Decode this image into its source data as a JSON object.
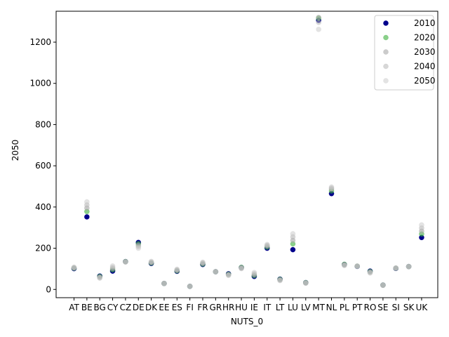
{
  "chart_data": {
    "type": "scatter",
    "xlabel": "NUTS_0",
    "ylabel": "2050",
    "ylim": [
      -40,
      1350
    ],
    "yticks": [
      0,
      200,
      400,
      600,
      800,
      1000,
      1200
    ],
    "grid": false,
    "legend_position": "top-right",
    "categories": [
      "AT",
      "BE",
      "BG",
      "CY",
      "CZ",
      "DE",
      "DK",
      "EE",
      "ES",
      "FI",
      "FR",
      "GR",
      "HR",
      "HU",
      "IE",
      "IT",
      "LT",
      "LU",
      "LV",
      "MT",
      "NL",
      "PL",
      "PT",
      "RO",
      "SE",
      "SI",
      "SK",
      "UK"
    ],
    "series": [
      {
        "name": "2010",
        "color": "#00008b",
        "opacity": 1.0,
        "values": [
          101,
          352,
          65,
          89,
          135,
          228,
          126,
          29,
          88,
          15,
          121,
          86,
          76,
          106,
          63,
          200,
          50,
          193,
          33,
          1306,
          465,
          121,
          112,
          89,
          21,
          102,
          111,
          252
        ]
      },
      {
        "name": "2020",
        "color": "#3cb03c",
        "opacity": 0.6,
        "values": [
          103,
          378,
          63,
          95,
          135,
          222,
          128,
          29,
          90,
          15,
          123,
          86,
          74,
          107,
          67,
          205,
          49,
          221,
          33,
          1316,
          478,
          122,
          113,
          87,
          21,
          103,
          111,
          269
        ]
      },
      {
        "name": "2030",
        "color": "#a9a9a9",
        "opacity": 0.6,
        "values": [
          104,
          395,
          60,
          101,
          134,
          215,
          130,
          29,
          92,
          15,
          126,
          86,
          72,
          105,
          71,
          210,
          47,
          238,
          32,
          1320,
          487,
          120,
          113,
          85,
          21,
          103,
          111,
          283
        ]
      },
      {
        "name": "2040",
        "color": "#b7b7b7",
        "opacity": 0.55,
        "values": [
          106,
          410,
          57,
          107,
          134,
          208,
          133,
          29,
          95,
          15,
          129,
          86,
          70,
          103,
          76,
          214,
          45,
          255,
          31,
          1296,
          492,
          118,
          113,
          82,
          20,
          104,
          111,
          298
        ]
      },
      {
        "name": "2050",
        "color": "#c8c8c8",
        "opacity": 0.5,
        "values": [
          108,
          425,
          55,
          114,
          133,
          200,
          136,
          29,
          98,
          15,
          132,
          86,
          68,
          101,
          82,
          218,
          43,
          270,
          30,
          1262,
          497,
          116,
          113,
          80,
          20,
          104,
          111,
          313
        ]
      }
    ]
  }
}
